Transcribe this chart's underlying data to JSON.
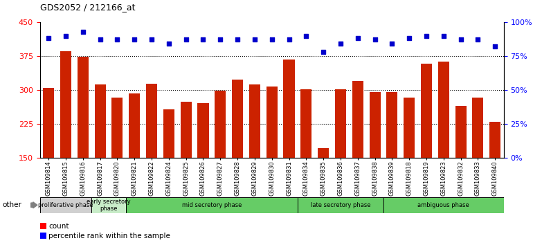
{
  "title": "GDS2052 / 212166_at",
  "samples": [
    "GSM109814",
    "GSM109815",
    "GSM109816",
    "GSM109817",
    "GSM109820",
    "GSM109821",
    "GSM109822",
    "GSM109824",
    "GSM109825",
    "GSM109826",
    "GSM109827",
    "GSM109828",
    "GSM109829",
    "GSM109830",
    "GSM109831",
    "GSM109834",
    "GSM109835",
    "GSM109836",
    "GSM109837",
    "GSM109838",
    "GSM109839",
    "GSM109818",
    "GSM109819",
    "GSM109823",
    "GSM109832",
    "GSM109833",
    "GSM109840"
  ],
  "counts": [
    304,
    385,
    374,
    313,
    283,
    293,
    314,
    258,
    274,
    271,
    298,
    323,
    312,
    308,
    368,
    302,
    172,
    302,
    320,
    295,
    295,
    283,
    358,
    362,
    265,
    283,
    230
  ],
  "percentile": [
    88,
    90,
    93,
    87,
    87,
    87,
    87,
    84,
    87,
    87,
    87,
    87,
    87,
    87,
    87,
    90,
    78,
    84,
    88,
    87,
    84,
    88,
    90,
    90,
    87,
    87,
    82
  ],
  "phases": [
    {
      "name": "proliferative phase",
      "start": 0,
      "end": 3,
      "color": "#d0d0d0"
    },
    {
      "name": "early secretory\nphase",
      "start": 3,
      "end": 5,
      "color": "#c8ecc8"
    },
    {
      "name": "mid secretory phase",
      "start": 5,
      "end": 15,
      "color": "#66cc66"
    },
    {
      "name": "late secretory phase",
      "start": 15,
      "end": 20,
      "color": "#66cc66"
    },
    {
      "name": "ambiguous phase",
      "start": 20,
      "end": 27,
      "color": "#66cc66"
    }
  ],
  "ylim_left": [
    150,
    450
  ],
  "ylim_right": [
    0,
    100
  ],
  "yticks_left": [
    150,
    225,
    300,
    375,
    450
  ],
  "yticks_right": [
    0,
    25,
    50,
    75,
    100
  ],
  "bar_color": "#cc2200",
  "dot_color": "#0000cc"
}
